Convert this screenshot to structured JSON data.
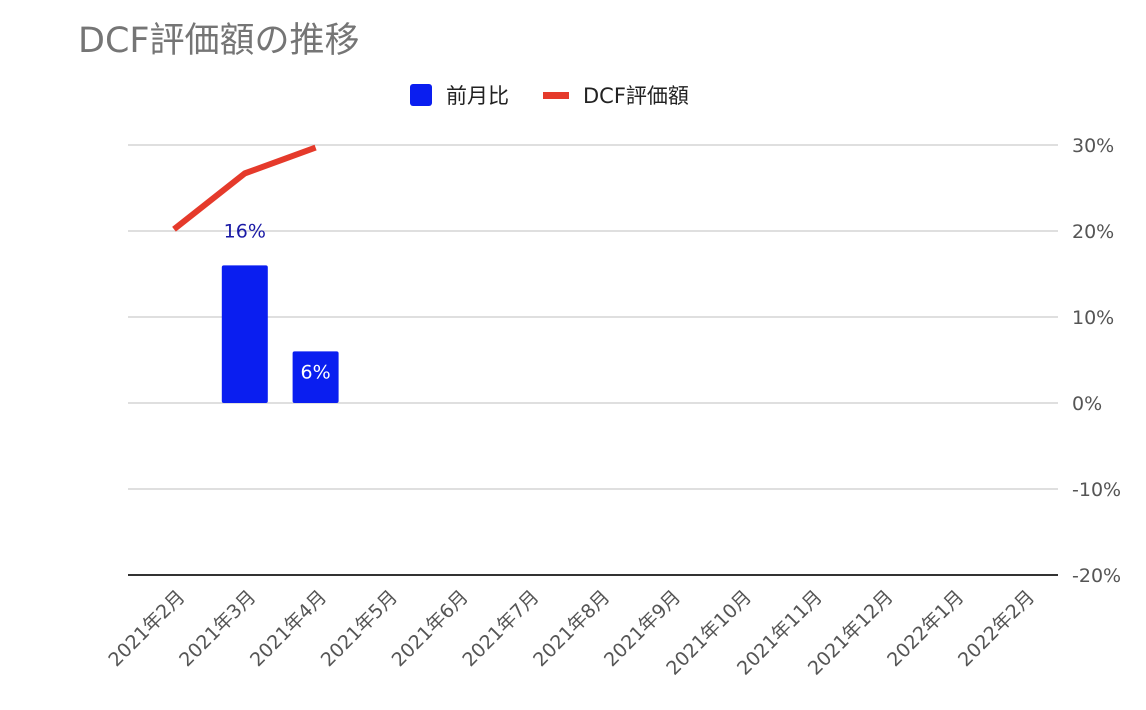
{
  "chart_data": {
    "type": "bar+line",
    "title": "DCF評価額の推移",
    "categories": [
      "2021年2月",
      "2021年3月",
      "2021年4月",
      "2021年5月",
      "2021年6月",
      "2021年7月",
      "2021年8月",
      "2021年9月",
      "2021年10月",
      "2021年11月",
      "2021年12月",
      "2022年1月",
      "2022年2月"
    ],
    "series": [
      {
        "name": "前月比",
        "type": "bar",
        "color": "#0a1ef0",
        "values": [
          null,
          16,
          6,
          null,
          null,
          null,
          null,
          null,
          null,
          null,
          null,
          null,
          null
        ],
        "data_labels": [
          null,
          "16%",
          "6%",
          null,
          null,
          null,
          null,
          null,
          null,
          null,
          null,
          null,
          null
        ]
      },
      {
        "name": "DCF評価額",
        "type": "line",
        "color": "#e53a2b",
        "values": [
          20.2,
          26.7,
          29.7,
          null,
          null,
          null,
          null,
          null,
          null,
          null,
          null,
          null,
          null
        ]
      }
    ],
    "y_axis": {
      "side": "right",
      "ylim": [
        -20,
        30
      ],
      "ticks": [
        30,
        20,
        10,
        0,
        -10,
        -20
      ],
      "tick_labels": [
        "30%",
        "20%",
        "10%",
        "0%",
        "-10%",
        "-20%"
      ]
    },
    "grid": true,
    "legend_position": "top"
  }
}
